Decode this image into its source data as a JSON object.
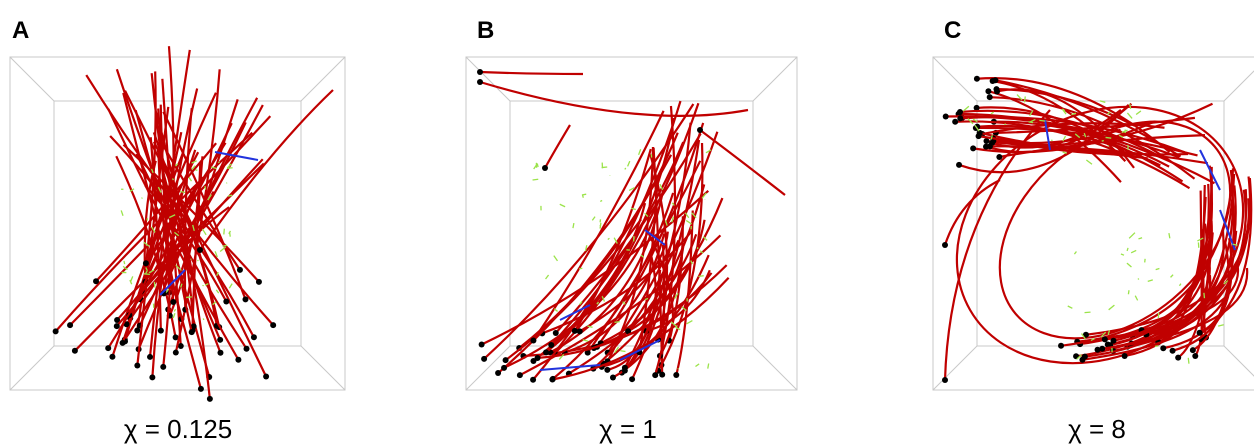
{
  "panels": [
    {
      "label": "A",
      "caption": "χ = 0.125"
    },
    {
      "label": "B",
      "caption": "χ = 1"
    },
    {
      "label": "C",
      "caption": "χ = 8"
    }
  ]
}
